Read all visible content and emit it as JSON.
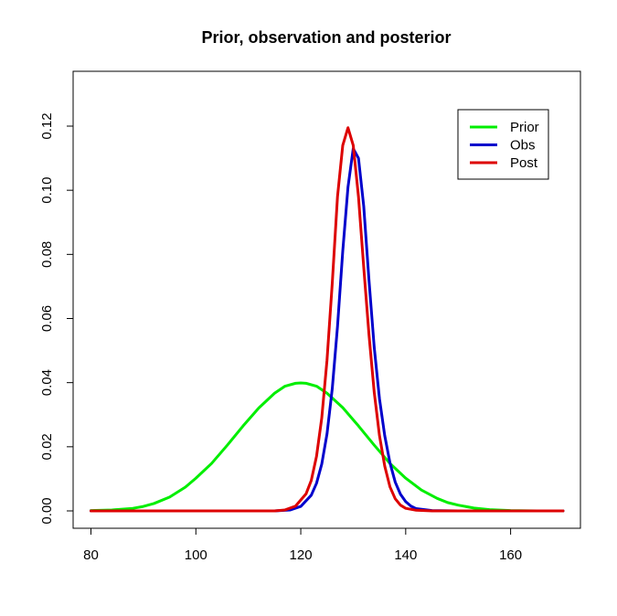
{
  "chart_data": {
    "type": "line",
    "title": "Prior, observation and posterior",
    "xlabel": "",
    "ylabel": "",
    "xlim": [
      80,
      170
    ],
    "ylim": [
      0,
      0.13
    ],
    "x_ticks": [
      80,
      100,
      120,
      140,
      160
    ],
    "y_ticks": [
      0.0,
      0.02,
      0.04,
      0.06,
      0.08,
      0.1,
      0.12
    ],
    "x_tick_labels": [
      "80",
      "100",
      "120",
      "140",
      "160"
    ],
    "y_tick_labels": [
      "0.00",
      "0.02",
      "0.04",
      "0.06",
      "0.08",
      "0.10",
      "0.12"
    ],
    "grid": false,
    "legend_position": "top-right",
    "series": [
      {
        "name": "Prior",
        "color": "#00ee00",
        "x": [
          80,
          84,
          88,
          90,
          92,
          95,
          98,
          100,
          103,
          106,
          109,
          112,
          115,
          117,
          119,
          120,
          121,
          123,
          125,
          128,
          131,
          134,
          137,
          140,
          143,
          146,
          148,
          150,
          153,
          156,
          160,
          165,
          170
        ],
        "y": [
          0.0001,
          0.0003,
          0.0008,
          0.0014,
          0.0023,
          0.0043,
          0.0074,
          0.0102,
          0.0148,
          0.0205,
          0.0265,
          0.0321,
          0.0367,
          0.0389,
          0.0398,
          0.0399,
          0.0398,
          0.0389,
          0.0367,
          0.0322,
          0.0265,
          0.0205,
          0.0148,
          0.0102,
          0.0065,
          0.0039,
          0.0026,
          0.0018,
          0.0009,
          0.0004,
          0.0001,
          0.0,
          0.0
        ]
      },
      {
        "name": "Obs",
        "color": "#0000cc",
        "x": [
          80,
          100,
          115,
          118,
          120,
          122,
          123,
          124,
          125,
          126,
          127,
          128,
          129,
          130,
          131,
          132,
          133,
          134,
          135,
          136,
          137,
          138,
          139,
          140,
          141,
          142,
          145,
          150,
          170
        ],
        "y": [
          0.0,
          0.0,
          0.0,
          0.0003,
          0.0014,
          0.0049,
          0.0086,
          0.0146,
          0.024,
          0.0381,
          0.0575,
          0.081,
          0.101,
          0.113,
          0.11,
          0.095,
          0.072,
          0.051,
          0.035,
          0.0235,
          0.015,
          0.009,
          0.0052,
          0.0029,
          0.0015,
          0.0007,
          0.0001,
          0.0,
          0.0
        ]
      },
      {
        "name": "Post",
        "color": "#dd0000",
        "x": [
          80,
          100,
          115,
          117,
          119,
          121,
          122,
          123,
          124,
          125,
          126,
          127,
          128,
          129,
          130,
          131,
          132,
          133,
          134,
          135,
          136,
          137,
          138,
          139,
          140,
          142,
          145,
          150,
          170
        ],
        "y": [
          0.0,
          0.0,
          0.0,
          0.0003,
          0.0015,
          0.0053,
          0.0095,
          0.017,
          0.029,
          0.047,
          0.071,
          0.098,
          0.114,
          0.1195,
          0.114,
          0.098,
          0.076,
          0.055,
          0.037,
          0.0235,
          0.014,
          0.0075,
          0.0038,
          0.0018,
          0.0008,
          0.0002,
          0.0,
          0.0,
          0.0
        ]
      }
    ]
  }
}
